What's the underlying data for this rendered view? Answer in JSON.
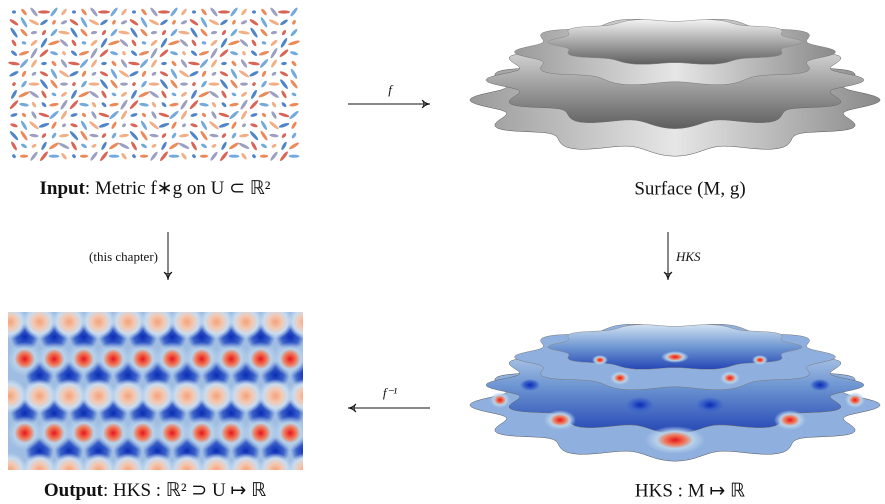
{
  "top_left": {
    "caption": {
      "bold": "Input",
      "rest": ": Metric f∗g on U ⊂ ℝ²"
    }
  },
  "top_right": {
    "caption": "Surface (M, g)"
  },
  "bottom_left": {
    "caption": {
      "bold": "Output",
      "rest": ": HKS : ℝ² ⊃ U ↦ ℝ"
    }
  },
  "bottom_right": {
    "caption": "HKS : M ↦ ℝ"
  },
  "arrows": {
    "top": "f",
    "left": "(this chapter)",
    "right": "HKS",
    "bottom": "f⁻¹"
  }
}
